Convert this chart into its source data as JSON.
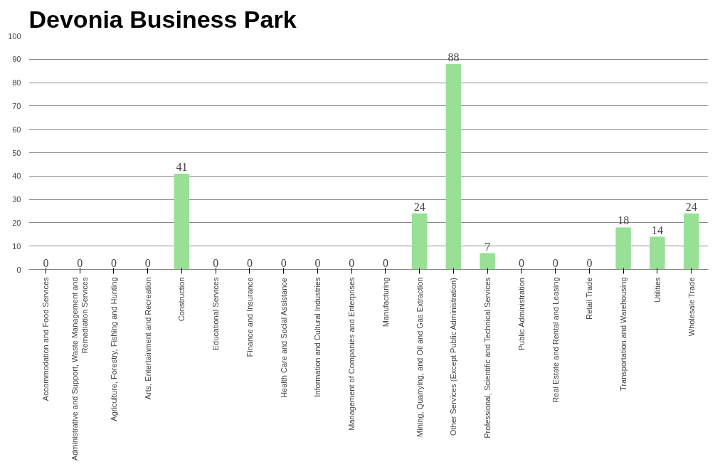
{
  "chart_data": {
    "type": "bar",
    "title": "Devonia Business Park",
    "categories": [
      "Accommodation and Food Services",
      "Administrative and Support, Waste Management and Remediation Services",
      "Agriculture, Forestry, Fishing and Hunting",
      "Arts, Entertainment and Recreation",
      "Construction",
      "Educational Services",
      "Finance and Insurance",
      "Health Care and Social Assistance",
      "Information and Cultural Industries",
      "Management of Companies and Enterprises",
      "Manufacturing",
      "Mining, Quarrying, and Oil and Gas Extraction",
      "Other Services (Except Public Administration)",
      "Professional, Scientific and Technical Services",
      "Public Administration",
      "Real Estate and Rental and Leasing",
      "Retail Trade",
      "Transportation and Warehousing",
      "Utilities",
      "Wholesale Trade"
    ],
    "values": [
      0,
      0,
      0,
      0,
      41,
      0,
      0,
      0,
      0,
      0,
      0,
      24,
      88,
      7,
      0,
      0,
      0,
      18,
      14,
      24
    ],
    "color": "#98e095",
    "ylim": [
      0,
      100
    ],
    "yticks": [
      0,
      10,
      20,
      30,
      40,
      50,
      60,
      70,
      80,
      90,
      100
    ],
    "grid": "y",
    "data_labels": true
  }
}
